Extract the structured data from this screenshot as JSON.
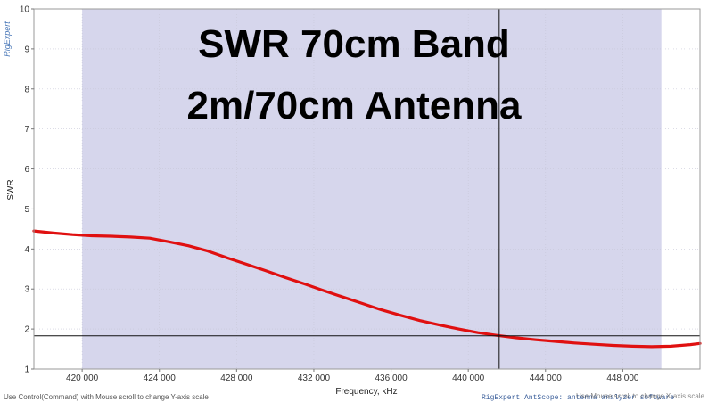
{
  "chart_data": {
    "type": "line",
    "title": "SWR 70cm Band",
    "subtitle": "2m/70cm Antenna",
    "xlabel": "Frequency, kHz",
    "ylabel": "SWR",
    "xlim": [
      417500,
      452000
    ],
    "ylim": [
      1,
      10
    ],
    "x_ticks": [
      420000,
      424000,
      428000,
      432000,
      436000,
      440000,
      444000,
      448000
    ],
    "x_tick_labels": [
      "420 000",
      "424 000",
      "428 000",
      "432 000",
      "436 000",
      "440 000",
      "444 000",
      "448 000"
    ],
    "y_ticks": [
      1,
      2,
      3,
      4,
      5,
      6,
      7,
      8,
      9,
      10
    ],
    "grid": true,
    "highlight_band": [
      420000,
      450000
    ],
    "cursor_x": 441600,
    "cursor_y": 1.83,
    "series": [
      {
        "color": "#e01010",
        "x": [
          417500,
          418500,
          419500,
          420500,
          421500,
          422500,
          423500,
          424500,
          425500,
          426500,
          427500,
          428500,
          429500,
          430500,
          431500,
          432500,
          433500,
          434500,
          435500,
          436500,
          437500,
          438500,
          439500,
          440500,
          441500,
          442500,
          443500,
          444500,
          445500,
          446500,
          447500,
          448500,
          449500,
          450500,
          451500,
          452000
        ],
        "y": [
          4.45,
          4.4,
          4.36,
          4.33,
          4.32,
          4.3,
          4.27,
          4.18,
          4.08,
          3.95,
          3.78,
          3.62,
          3.46,
          3.29,
          3.13,
          2.96,
          2.8,
          2.64,
          2.48,
          2.34,
          2.21,
          2.1,
          2.0,
          1.91,
          1.84,
          1.78,
          1.73,
          1.69,
          1.65,
          1.62,
          1.59,
          1.57,
          1.56,
          1.57,
          1.61,
          1.64
        ]
      }
    ]
  },
  "brand": "RigExpert",
  "footer_left": "Use Control(Command) with Mouse scroll to change Y-axis scale",
  "footer_right": "RigExpert AntScope: antenna analyzer software",
  "footer_hint": "Use Mouse scroll to change X-axis scale",
  "colors": {
    "band_fill": "#d6d6ec",
    "grid": "#c8c8d8",
    "series": "#e01010",
    "cursor": "#111111"
  }
}
